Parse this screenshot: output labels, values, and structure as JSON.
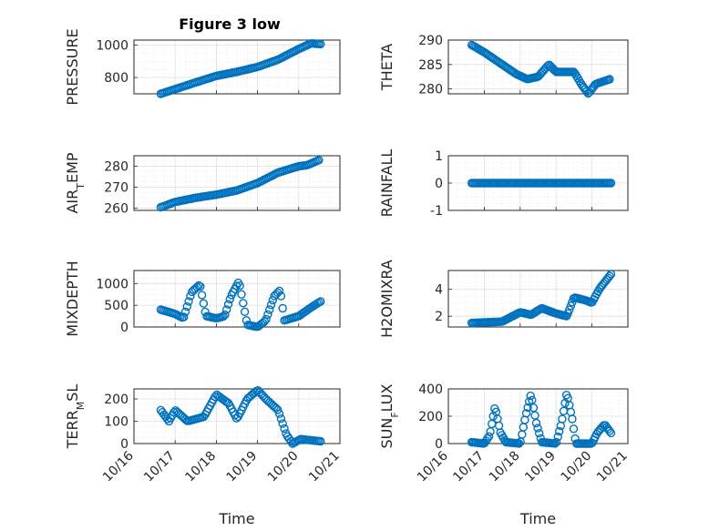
{
  "title": "Figure 3 low",
  "chart_data": [
    {
      "type": "scatter",
      "ylabel": "PRESSURE",
      "xlabel": "",
      "title": "Figure 3 low",
      "xlim": [
        "10/16",
        "10/21"
      ],
      "ylim": [
        700,
        1030
      ],
      "yticks": [
        800,
        1000
      ],
      "color": "#0072BD",
      "marker": "circle",
      "grid": "on (major + minor)",
      "anchors": [
        [
          16.65,
          700
        ],
        [
          17.5,
          770
        ],
        [
          18.0,
          810
        ],
        [
          18.5,
          835
        ],
        [
          19.0,
          865
        ],
        [
          19.5,
          910
        ],
        [
          20.0,
          975
        ],
        [
          20.3,
          1010
        ],
        [
          20.55,
          1005
        ]
      ]
    },
    {
      "type": "scatter",
      "ylabel": "THETA",
      "xlabel": "",
      "xlim": [
        "10/16",
        "10/21"
      ],
      "ylim": [
        279,
        290
      ],
      "yticks": [
        280,
        285,
        290
      ],
      "color": "#0072BD",
      "marker": "circle",
      "grid": "on (major + minor)",
      "anchors": [
        [
          16.65,
          289
        ],
        [
          17.0,
          287.5
        ],
        [
          17.5,
          285
        ],
        [
          17.9,
          283
        ],
        [
          18.2,
          282
        ],
        [
          18.5,
          282.5
        ],
        [
          18.8,
          285
        ],
        [
          19.0,
          283.5
        ],
        [
          19.5,
          283.5
        ],
        [
          19.7,
          281
        ],
        [
          19.9,
          279
        ],
        [
          20.1,
          281
        ],
        [
          20.5,
          282
        ]
      ]
    },
    {
      "type": "scatter",
      "ylabel": "AIR_TEMP",
      "xlabel": "",
      "xlim": [
        "10/16",
        "10/21"
      ],
      "ylim": [
        259,
        285
      ],
      "yticks": [
        260,
        270,
        280
      ],
      "color": "#0072BD",
      "marker": "circle",
      "grid": "on (major + minor)",
      "anchors": [
        [
          16.65,
          260.5
        ],
        [
          17.0,
          263
        ],
        [
          17.5,
          265
        ],
        [
          18.0,
          266.5
        ],
        [
          18.5,
          268.5
        ],
        [
          19.0,
          272
        ],
        [
          19.5,
          277
        ],
        [
          20.0,
          280
        ],
        [
          20.2,
          280.5
        ],
        [
          20.5,
          283
        ]
      ]
    },
    {
      "type": "scatter",
      "ylabel": "RAINFALL",
      "xlabel": "",
      "xlim": [
        "10/16",
        "10/21"
      ],
      "ylim": [
        -1,
        1
      ],
      "yticks": [
        -1,
        0,
        1
      ],
      "color": "#0072BD",
      "marker": "circle",
      "grid": "on (major + minor)",
      "anchors": [
        [
          16.65,
          0
        ],
        [
          20.55,
          0
        ]
      ]
    },
    {
      "type": "scatter",
      "ylabel": "MIXDEPTH",
      "xlabel": "",
      "xlim": [
        "10/16",
        "10/21"
      ],
      "ylim": [
        0,
        1300
      ],
      "yticks": [
        0,
        500,
        1000
      ],
      "color": "#0072BD",
      "marker": "circle",
      "grid": "on (major + minor)",
      "anchors": [
        [
          16.65,
          400
        ],
        [
          17.0,
          300
        ],
        [
          17.2,
          200
        ],
        [
          17.4,
          800
        ],
        [
          17.6,
          980
        ],
        [
          17.75,
          250
        ],
        [
          18.0,
          200
        ],
        [
          18.2,
          250
        ],
        [
          18.35,
          700
        ],
        [
          18.55,
          1050
        ],
        [
          18.75,
          50
        ],
        [
          19.0,
          0
        ],
        [
          19.2,
          150
        ],
        [
          19.4,
          700
        ],
        [
          19.55,
          850
        ],
        [
          19.65,
          150
        ],
        [
          20.0,
          250
        ],
        [
          20.3,
          450
        ],
        [
          20.55,
          600
        ]
      ]
    },
    {
      "type": "scatter",
      "ylabel": "H2OMIXRA",
      "xlabel": "",
      "xlim": [
        "10/16",
        "10/21"
      ],
      "ylim": [
        1.2,
        5.4
      ],
      "yticks": [
        2,
        4
      ],
      "color": "#0072BD",
      "marker": "circle",
      "grid": "on (major + minor)",
      "anchors": [
        [
          16.65,
          1.5
        ],
        [
          17.5,
          1.6
        ],
        [
          18.0,
          2.3
        ],
        [
          18.3,
          2.1
        ],
        [
          18.6,
          2.6
        ],
        [
          19.0,
          2.2
        ],
        [
          19.3,
          2.0
        ],
        [
          19.5,
          3.4
        ],
        [
          19.8,
          3.2
        ],
        [
          20.0,
          3.0
        ],
        [
          20.2,
          4.0
        ],
        [
          20.55,
          5.2
        ]
      ]
    },
    {
      "type": "scatter",
      "ylabel": "TERR_MSL",
      "xlabel": "Time",
      "xlim": [
        "10/16",
        "10/21"
      ],
      "ylim": [
        0,
        245
      ],
      "yticks": [
        0,
        100,
        200
      ],
      "xticks": [
        "10/16",
        "10/17",
        "10/18",
        "10/19",
        "10/20",
        "10/21"
      ],
      "color": "#0072BD",
      "marker": "circle",
      "grid": "on (major + minor)",
      "anchors": [
        [
          16.65,
          150
        ],
        [
          16.85,
          100
        ],
        [
          17.0,
          150
        ],
        [
          17.3,
          100
        ],
        [
          17.7,
          120
        ],
        [
          18.0,
          220
        ],
        [
          18.3,
          180
        ],
        [
          18.5,
          110
        ],
        [
          18.75,
          200
        ],
        [
          19.0,
          240
        ],
        [
          19.2,
          200
        ],
        [
          19.5,
          150
        ],
        [
          19.7,
          40
        ],
        [
          19.85,
          0
        ],
        [
          20.05,
          20
        ],
        [
          20.55,
          10
        ]
      ]
    },
    {
      "type": "scatter",
      "ylabel": "SUN_FLUX",
      "xlabel": "Time",
      "xlim": [
        "10/16",
        "10/21"
      ],
      "ylim": [
        0,
        400
      ],
      "yticks": [
        0,
        200,
        400
      ],
      "xticks": [
        "10/16",
        "10/17",
        "10/18",
        "10/19",
        "10/20",
        "10/21"
      ],
      "color": "#0072BD",
      "marker": "circle",
      "grid": "on (major + minor)",
      "anchors": [
        [
          16.65,
          10
        ],
        [
          17.0,
          0
        ],
        [
          17.15,
          60
        ],
        [
          17.3,
          270
        ],
        [
          17.45,
          80
        ],
        [
          17.6,
          10
        ],
        [
          18.0,
          0
        ],
        [
          18.15,
          200
        ],
        [
          18.3,
          360
        ],
        [
          18.45,
          150
        ],
        [
          18.6,
          10
        ],
        [
          19.0,
          0
        ],
        [
          19.15,
          150
        ],
        [
          19.3,
          370
        ],
        [
          19.45,
          180
        ],
        [
          19.55,
          0
        ],
        [
          20.0,
          0
        ],
        [
          20.15,
          80
        ],
        [
          20.35,
          140
        ],
        [
          20.55,
          70
        ]
      ]
    }
  ]
}
